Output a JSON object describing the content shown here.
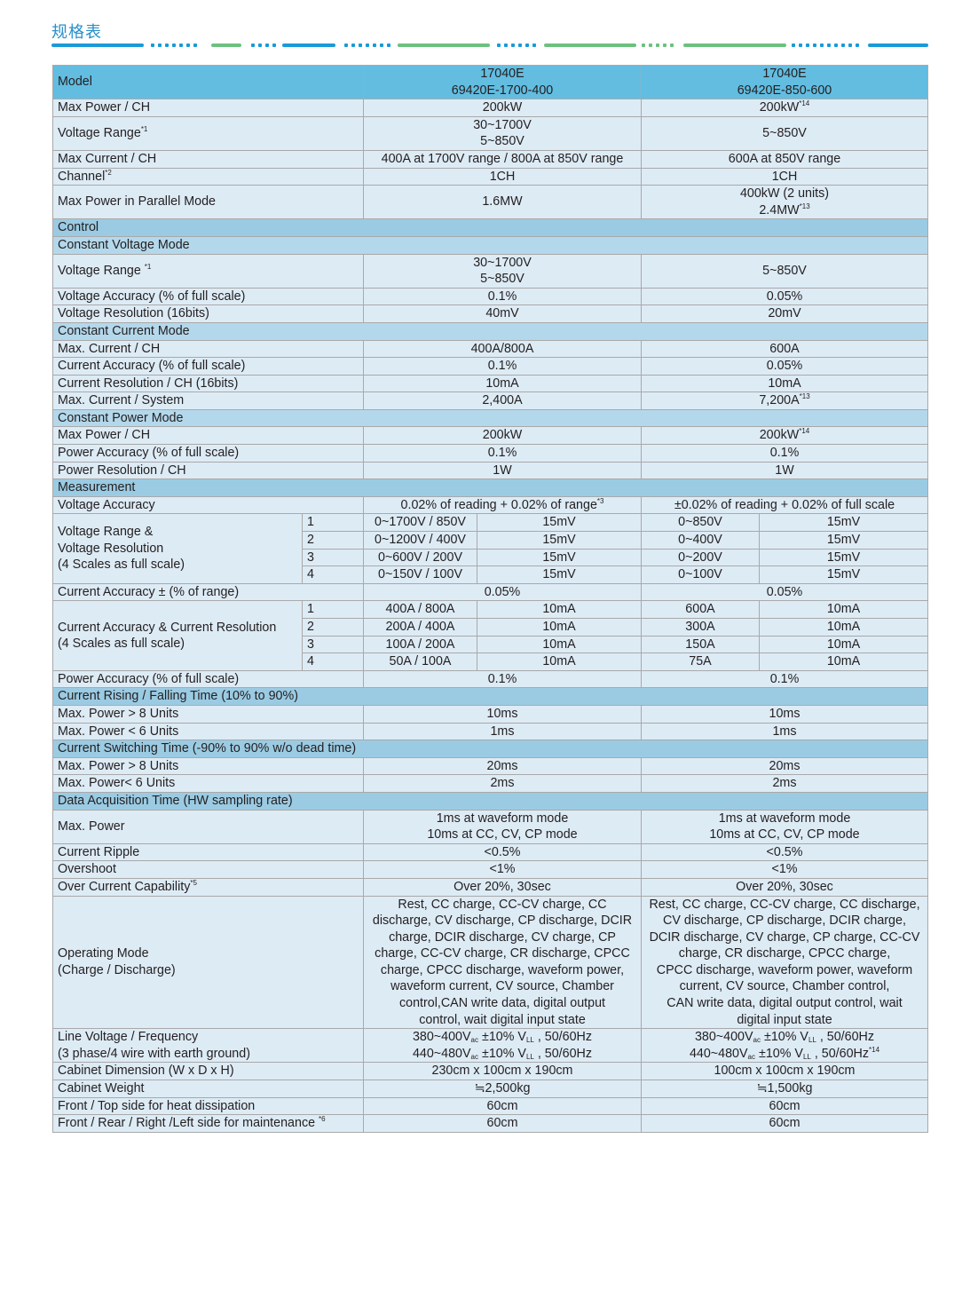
{
  "page_title": "规格表",
  "colors": {
    "title": "#2a8fc9",
    "dash_blue": "#1a9ad6",
    "dash_green": "#6cc17e",
    "header_bg": "#62bde1",
    "section_major_bg": "#9bcbe3",
    "section_sub_bg": "#b4d8eb",
    "row_bg": "#ddebf5",
    "outer_border": "#e9a08e"
  },
  "table": {
    "rows": [
      {
        "type": "header",
        "label": "Model",
        "c2": [
          "17040E",
          "69420E-1700-400"
        ],
        "c3": [
          "17040E",
          "69420E-850-600"
        ]
      },
      {
        "type": "row",
        "label": "Max Power / CH",
        "c2": [
          "200kW"
        ],
        "c3": [
          [
            "200kW",
            {
              "sup": "*14"
            }
          ]
        ]
      },
      {
        "type": "row",
        "label": [
          [
            "Voltage Range",
            {
              "sup": "*1"
            }
          ]
        ],
        "c2": [
          "30~1700V",
          "5~850V"
        ],
        "c3": [
          "5~850V"
        ]
      },
      {
        "type": "row",
        "label": "Max Current / CH",
        "c2": [
          "400A at 1700V range / 800A at 850V range"
        ],
        "c3": [
          "600A at 850V range"
        ]
      },
      {
        "type": "row",
        "label": [
          [
            "Channel",
            {
              "sup": "*2"
            }
          ]
        ],
        "c2": [
          "1CH"
        ],
        "c3": [
          "1CH"
        ]
      },
      {
        "type": "row",
        "label": "Max Power in Parallel Mode",
        "c2": [
          "1.6MW"
        ],
        "c3": [
          "400kW (2 units)",
          [
            "2.4MW",
            {
              "sup": "*13"
            }
          ]
        ]
      },
      {
        "type": "section",
        "level": "major",
        "label": "Control"
      },
      {
        "type": "section",
        "level": "sub",
        "label": "Constant Voltage Mode"
      },
      {
        "type": "row",
        "label": [
          [
            "Voltage Range ",
            {
              "sup": "*1"
            }
          ]
        ],
        "c2": [
          "30~1700V",
          "5~850V"
        ],
        "c3": [
          "5~850V"
        ]
      },
      {
        "type": "row",
        "label": "Voltage Accuracy (% of full scale)",
        "c2": [
          "0.1%"
        ],
        "c3": [
          "0.05%"
        ]
      },
      {
        "type": "row",
        "label": "Voltage Resolution (16bits)",
        "c2": [
          "40mV"
        ],
        "c3": [
          "20mV"
        ]
      },
      {
        "type": "section",
        "level": "sub",
        "label": "Constant Current Mode"
      },
      {
        "type": "row",
        "label": "Max. Current / CH",
        "c2": [
          "400A/800A"
        ],
        "c3": [
          "600A"
        ]
      },
      {
        "type": "row",
        "label": "Current Accuracy (% of full scale)",
        "c2": [
          "0.1%"
        ],
        "c3": [
          "0.05%"
        ]
      },
      {
        "type": "row",
        "label": "Current Resolution / CH (16bits)",
        "c2": [
          "10mA"
        ],
        "c3": [
          "10mA"
        ]
      },
      {
        "type": "row",
        "label": "Max. Current / System",
        "c2": [
          "2,400A"
        ],
        "c3": [
          [
            "7,200A",
            {
              "sup": "*13"
            }
          ]
        ]
      },
      {
        "type": "section",
        "level": "sub",
        "label": "Constant Power Mode"
      },
      {
        "type": "row",
        "label": "Max Power / CH",
        "c2": [
          "200kW"
        ],
        "c3": [
          [
            "200kW",
            {
              "sup": "*14"
            }
          ]
        ]
      },
      {
        "type": "row",
        "label": "Power Accuracy (% of full scale)",
        "c2": [
          "0.1%"
        ],
        "c3": [
          "0.1%"
        ]
      },
      {
        "type": "row",
        "label": "Power Resolution / CH",
        "c2": [
          "1W"
        ],
        "c3": [
          "1W"
        ]
      },
      {
        "type": "section",
        "level": "major",
        "label": "Measurement"
      },
      {
        "type": "row",
        "label": "Voltage Accuracy",
        "c2": [
          [
            "0.02% of reading + 0.02% of range",
            {
              "sup": "*3"
            }
          ]
        ],
        "c3": [
          "±0.02% of reading + 0.02% of full scale"
        ]
      },
      {
        "type": "group",
        "label": [
          "Voltage Range &",
          "Voltage Resolution",
          "(4 Scales as full scale)"
        ],
        "items": [
          [
            "1",
            "0~1700V / 850V",
            "15mV",
            "0~850V",
            "15mV"
          ],
          [
            "2",
            "0~1200V / 400V",
            "15mV",
            "0~400V",
            "15mV"
          ],
          [
            "3",
            "0~600V / 200V",
            "15mV",
            "0~200V",
            "15mV"
          ],
          [
            "4",
            "0~150V / 100V",
            "15mV",
            "0~100V",
            "15mV"
          ]
        ]
      },
      {
        "type": "row",
        "label": "Current Accuracy ± (% of range)",
        "c2": [
          "0.05%"
        ],
        "c3": [
          "0.05%"
        ]
      },
      {
        "type": "group",
        "label": [
          "Current Accuracy & Current Resolution",
          "(4 Scales as full scale)"
        ],
        "items": [
          [
            "1",
            "400A / 800A",
            "10mA",
            "600A",
            "10mA"
          ],
          [
            "2",
            "200A / 400A",
            "10mA",
            "300A",
            "10mA"
          ],
          [
            "3",
            "100A / 200A",
            "10mA",
            "150A",
            "10mA"
          ],
          [
            "4",
            "50A / 100A",
            "10mA",
            "75A",
            "10mA"
          ]
        ]
      },
      {
        "type": "row",
        "label": "Power Accuracy (% of full scale)",
        "c2": [
          "0.1%"
        ],
        "c3": [
          "0.1%"
        ]
      },
      {
        "type": "section",
        "level": "major",
        "label": "Current Rising / Falling Time (10% to 90%)"
      },
      {
        "type": "row",
        "label": "Max. Power > 8 Units",
        "c2": [
          "10ms"
        ],
        "c3": [
          "10ms"
        ]
      },
      {
        "type": "row",
        "label": "Max. Power < 6 Units",
        "c2": [
          "1ms"
        ],
        "c3": [
          "1ms"
        ]
      },
      {
        "type": "section",
        "level": "major",
        "label": "Current Switching Time (-90% to 90% w/o dead time)"
      },
      {
        "type": "row",
        "label": "Max. Power > 8 Units",
        "c2": [
          "20ms"
        ],
        "c3": [
          "20ms"
        ]
      },
      {
        "type": "row",
        "label": "Max. Power< 6 Units",
        "c2": [
          "2ms"
        ],
        "c3": [
          "2ms"
        ]
      },
      {
        "type": "section",
        "level": "major",
        "label": "Data Acquisition Time (HW sampling rate)"
      },
      {
        "type": "row",
        "label": "Max. Power",
        "c2": [
          "1ms at waveform mode",
          "10ms at CC, CV, CP mode"
        ],
        "c3": [
          "1ms  at waveform mode",
          "10ms at CC, CV, CP mode"
        ]
      },
      {
        "type": "row",
        "label": "Current Ripple",
        "c2": [
          "<0.5%"
        ],
        "c3": [
          "<0.5%"
        ]
      },
      {
        "type": "row",
        "label": "Overshoot",
        "c2": [
          "<1%"
        ],
        "c3": [
          "<1%"
        ]
      },
      {
        "type": "row",
        "label": [
          [
            "Over Current Capability",
            {
              "sup": "*5"
            }
          ]
        ],
        "c2": [
          "Over 20%, 30sec"
        ],
        "c3": [
          "Over 20%, 30sec"
        ]
      },
      {
        "type": "row",
        "label": [
          "Operating Mode",
          "(Charge / Discharge)"
        ],
        "c2": [
          "Rest, CC charge, CC-CV charge, CC",
          "discharge, CV discharge, CP discharge, DCIR",
          "charge, DCIR discharge, CV charge, CP",
          "charge, CC-CV charge, CR discharge, CPCC",
          "charge, CPCC discharge, waveform power,",
          "waveform current, CV source, Chamber",
          "control,CAN write data, digital output",
          "control, wait digital input state"
        ],
        "c3": [
          "Rest, CC charge, CC-CV charge, CC discharge,",
          "CV discharge, CP discharge, DCIR charge,",
          "DCIR discharge, CV charge, CP charge, CC-CV",
          "charge, CR discharge, CPCC charge,",
          "CPCC discharge, waveform power, waveform",
          "current, CV source, Chamber control,",
          "CAN write data, digital output control, wait",
          "digital input state"
        ]
      },
      {
        "type": "row",
        "label": [
          "Line Voltage / Frequency",
          "(3 phase/4 wire with earth ground)"
        ],
        "c2": [
          [
            "380~400V",
            {
              "sub": "ac"
            },
            " ±10% V",
            {
              "sub": "LL"
            },
            " , 50/60Hz"
          ],
          [
            "440~480V",
            {
              "sub": "ac"
            },
            " ±10% V",
            {
              "sub": "LL"
            },
            " , 50/60Hz"
          ]
        ],
        "c3": [
          [
            "380~400V",
            {
              "sub": "ac"
            },
            " ±10% V",
            {
              "sub": "LL"
            },
            " , 50/60Hz"
          ],
          [
            "440~480V",
            {
              "sub": "ac"
            },
            " ±10% V",
            {
              "sub": "LL"
            },
            " , 50/60Hz",
            {
              "sup": "*14"
            }
          ]
        ]
      },
      {
        "type": "row",
        "label": "Cabinet Dimension (W x D x H)",
        "c2": [
          "230cm x 100cm x 190cm"
        ],
        "c3": [
          "100cm x 100cm x 190cm"
        ]
      },
      {
        "type": "row",
        "label": "Cabinet Weight",
        "c2": [
          "≒2,500kg"
        ],
        "c3": [
          "≒1,500kg"
        ]
      },
      {
        "type": "row",
        "label": "Front / Top side for heat dissipation",
        "c2": [
          "60cm"
        ],
        "c3": [
          "60cm"
        ]
      },
      {
        "type": "row",
        "label": [
          [
            "Front / Rear / Right /Left side for maintenance ",
            {
              "sup": "*6"
            }
          ]
        ],
        "c2": [
          "60cm"
        ],
        "c3": [
          "60cm"
        ]
      }
    ]
  }
}
